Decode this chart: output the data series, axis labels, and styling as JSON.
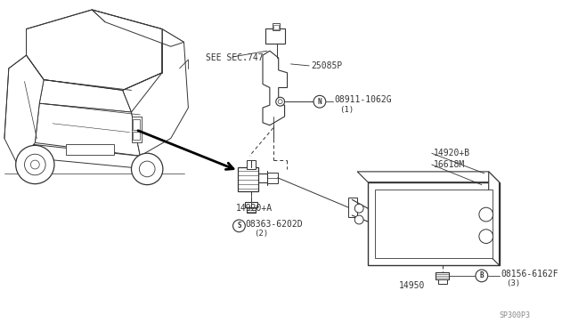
{
  "bg_color": "#ffffff",
  "fig_width": 6.4,
  "fig_height": 3.72,
  "dpi": 100,
  "labels": {
    "see_sec": "SEE SEC.747",
    "part1": "25085P",
    "part2": "08911-1062G",
    "part2_num": "(1)",
    "part3": "14920+B",
    "part4": "16618M",
    "part5": "14920+A",
    "part6": "08363-6202D",
    "part6_num": "(2)",
    "part7": "14950",
    "part8": "08156-6162F",
    "part8_num": "(3)",
    "footer": "SP300P3",
    "N_label": "N",
    "S_label": "S",
    "B_label": "B"
  },
  "lc": "#333333",
  "tc": "#333333",
  "fs": 7.0,
  "fs_footer": 6.0
}
